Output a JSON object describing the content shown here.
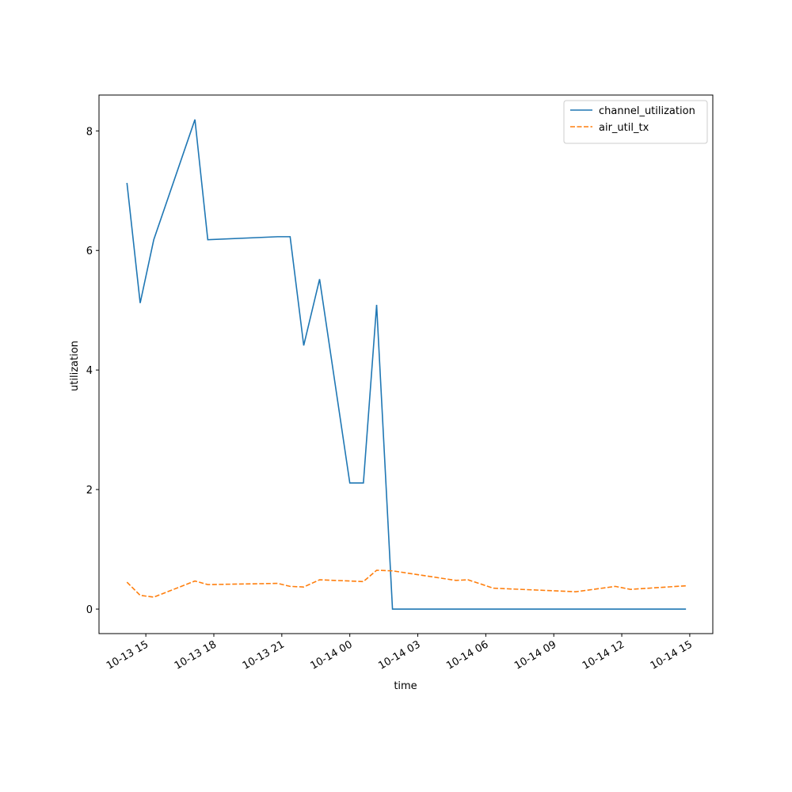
{
  "chart_data": {
    "type": "line",
    "xlabel": "time",
    "ylabel": "utilization",
    "x": [
      "10-13 14:10",
      "10-13 14:45",
      "10-13 15:21",
      "10-13 17:10",
      "10-13 17:44",
      "10-13 20:49",
      "10-13 21:22",
      "10-13 21:58",
      "10-13 22:40",
      "10-14 00:00",
      "10-14 00:36",
      "10-14 01:11",
      "10-14 01:53",
      "10-14 04:41",
      "10-14 05:13",
      "10-14 06:20",
      "10-14 09:58",
      "10-14 11:43",
      "10-14 12:23",
      "10-14 14:50"
    ],
    "series": [
      {
        "name": "channel_utilization",
        "color": "#1f77b4",
        "dash": "solid",
        "values": [
          7.13,
          5.12,
          6.18,
          8.19,
          6.18,
          6.23,
          6.23,
          4.41,
          5.52,
          2.11,
          2.11,
          5.09,
          0,
          0,
          0,
          0,
          0,
          0,
          0,
          0
        ]
      },
      {
        "name": "air_util_tx",
        "color": "#ff7f0e",
        "dash": "dashed",
        "values": [
          0.45,
          0.23,
          0.2,
          0.47,
          0.41,
          0.43,
          0.38,
          0.37,
          0.49,
          0.47,
          0.46,
          0.65,
          0.64,
          0.48,
          0.49,
          0.35,
          0.29,
          0.38,
          0.33,
          0.39
        ]
      }
    ],
    "xlim": [
      "10-13 12:56",
      "10-14 16:01"
    ],
    "xticks": [
      "10-13 15",
      "10-13 18",
      "10-13 21",
      "10-14 00",
      "10-14 03",
      "10-14 06",
      "10-14 09",
      "10-14 12",
      "10-14 15"
    ],
    "ylim": [
      -0.41,
      8.6
    ],
    "yticks": [
      0,
      2,
      4,
      6,
      8
    ],
    "legend": "upper right"
  }
}
